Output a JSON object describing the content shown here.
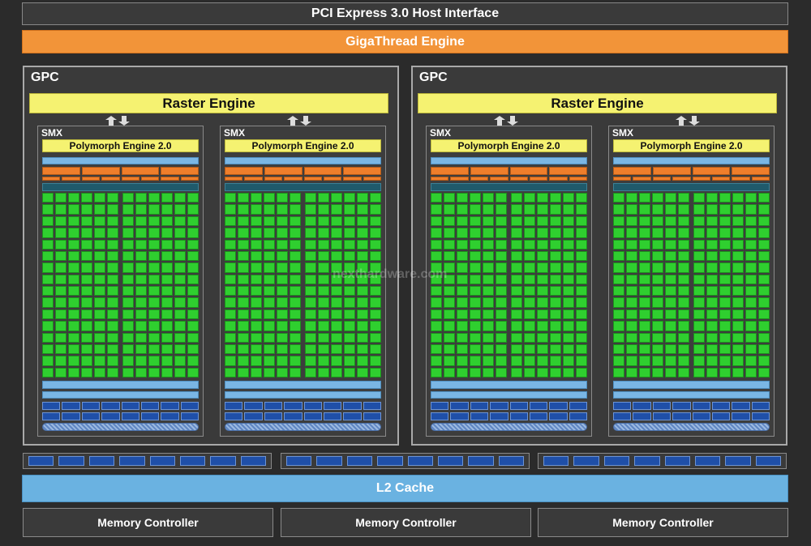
{
  "host_interface": "PCI Express 3.0 Host Interface",
  "gigathread": "GigaThread Engine",
  "gpcs": [
    {
      "label": "GPC",
      "raster": "Raster Engine",
      "smx": [
        {
          "label": "SMX",
          "polymorph": "Polymorph Engine 2.0"
        },
        {
          "label": "SMX",
          "polymorph": "Polymorph Engine 2.0"
        }
      ]
    },
    {
      "label": "GPC",
      "raster": "Raster Engine",
      "smx": [
        {
          "label": "SMX",
          "polymorph": "Polymorph Engine 2.0"
        },
        {
          "label": "SMX",
          "polymorph": "Polymorph Engine 2.0"
        }
      ]
    }
  ],
  "l2_cache": "L2 Cache",
  "memory_controllers": [
    "Memory Controller",
    "Memory Controller",
    "Memory Controller"
  ],
  "watermark": "nexthardware.com",
  "colors": {
    "giga": "#f29439",
    "raster": "#f5f271",
    "core": "#2fcf2f",
    "l2": "#6ab2e1"
  }
}
